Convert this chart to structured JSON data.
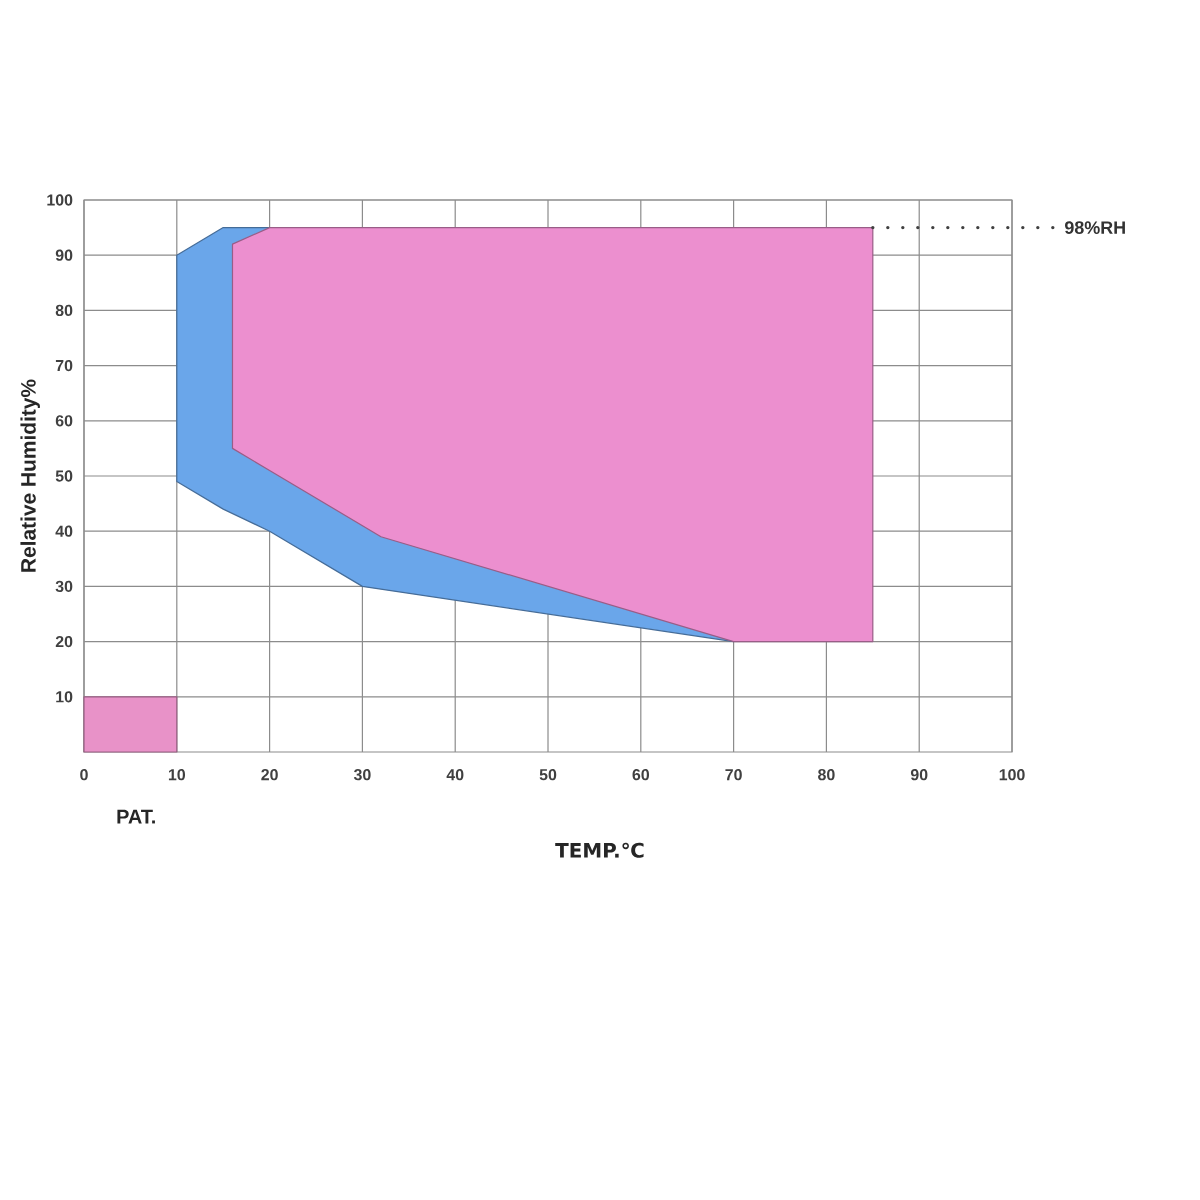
{
  "chart_data": {
    "type": "area",
    "xlabel": "TEMP.℃",
    "ylabel": "Relative Humidity%",
    "annotations": [
      "PAT."
    ],
    "series": [
      {
        "color": "#6aa6ea",
        "x": [
          10,
          15,
          20,
          30,
          70
        ],
        "values": [
          null,
          null,
          null,
          null,
          null
        ],
        "lower": [
          49,
          44,
          40,
          30,
          20
        ],
        "upper": [
          90,
          95,
          95,
          95,
          95
        ]
      },
      {
        "color": "#ec8fcf",
        "x": [
          16,
          20,
          32,
          70,
          85
        ],
        "values": [
          null,
          null,
          null,
          null,
          null
        ],
        "lower": [
          55,
          51,
          39,
          20,
          20
        ],
        "upper": [
          92,
          95,
          95,
          95,
          95
        ]
      },
      {
        "color": "#e892c8",
        "x": [
          0,
          10
        ],
        "values": [
          null,
          null
        ],
        "lower": [
          0,
          0
        ],
        "upper": [
          10,
          10
        ]
      }
    ],
    "xlim": [
      0,
      100
    ],
    "ylim": [
      0,
      100
    ],
    "xticks": [
      0,
      10,
      20,
      30,
      40,
      50,
      60,
      70,
      80,
      90,
      100
    ],
    "yticks": [
      10,
      20,
      30,
      40,
      50,
      60,
      70,
      80,
      90,
      100
    ],
    "grid": true,
    "ref_lines": [
      {
        "axis": "y",
        "value": 95,
        "label": "98%RH",
        "line_style": "dotted"
      }
    ]
  }
}
